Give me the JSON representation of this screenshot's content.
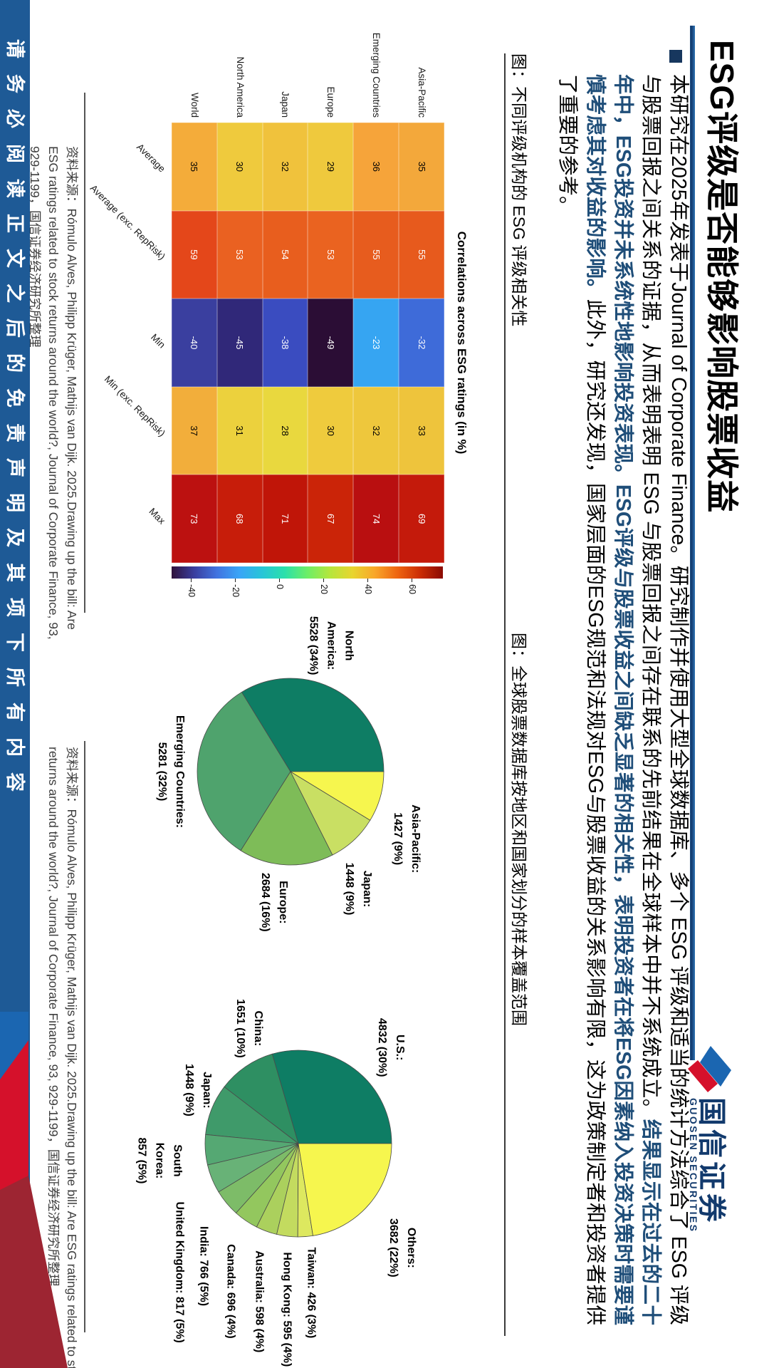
{
  "header": {
    "title": "ESG评级是否能够影响股票收益",
    "logo_cn": "国信证券",
    "logo_en": "GUOSEN SECURITIES",
    "accent_navy": "#1f4e79",
    "underline_color": "#1c4e85"
  },
  "paragraph": {
    "runs": [
      {
        "style": "normal",
        "text": "本研究在2025年发表于Journal of Corporate Finance。研究制作并使用大型全球数据库、多个 ESG 评级和适当的统计方法综合了 ESG 评级与股票回报之间关系的证据，从而表明表明 ESG 与股票回报之间存在联系的先前结果在全球样本中并不系统成立。"
      },
      {
        "style": "em",
        "text": "结果显示在过去的二十年中，ESG投资并未系统性地影响投资表现。ESG评级与股票收益之间缺乏显著的相关性，表明投资者在将ESG因素纳入投资决策时需要谨慎考虑其对收益的影响。"
      },
      {
        "style": "normal",
        "text": "此外，研究还发现，国家层面的ESG规范和法规对ESG与股票收益的关系影响有限，这为政策制定者和投资者提供了重要的参考。"
      }
    ]
  },
  "figure1": {
    "caption": "图：不同评级机构的 ESG 评级相关性",
    "source_lines": [
      "资料来源：Rómulo Alves, Philipp Krüger, Mathijs van Dijk. 2025.Drawing up the bill: Are",
      "ESG ratings related to stock returns around the world?, Journal of Corporate Finance, 93,",
      "929-1199，国信证券经济研究所整理"
    ]
  },
  "figure2": {
    "caption": "图：全球股票数据库按地区和国家划分的样本覆盖范围",
    "source_lines": [
      "资料来源：Rómulo Alves, Philipp Krüger, Mathijs van Dijk. 2025.Drawing up the bill: Are ESG ratings related to stock",
      "returns around the world?, Journal of Corporate Finance, 93, 929-1199，国信证券经济研究所整理"
    ]
  },
  "footer": {
    "disclaimer": "请务必阅读正文之后的免责声明及其项下所有内容"
  },
  "chart_data": [
    {
      "type": "heatmap",
      "title": "Correlations across ESG ratings (in %)",
      "rows": [
        "Asia-Pacific",
        "Emerging Countries",
        "Europe",
        "Japan",
        "North America",
        "World"
      ],
      "cols": [
        "Average",
        "Average (exc. RepRisk)",
        "Min",
        "Min (exc. RepRisk)",
        "Max"
      ],
      "values": [
        [
          35,
          55,
          -32,
          33,
          69
        ],
        [
          36,
          55,
          -23,
          32,
          74
        ],
        [
          29,
          53,
          -49,
          30,
          67
        ],
        [
          32,
          54,
          -38,
          28,
          71
        ],
        [
          30,
          53,
          -45,
          31,
          68
        ],
        [
          35,
          59,
          -40,
          37,
          73
        ]
      ],
      "cell_colors": [
        [
          "#F3A83B",
          "#E75A1D",
          "#3E6BD9",
          "#EEC43C",
          "#C41A0B"
        ],
        [
          "#F6A43A",
          "#E75C1E",
          "#36A5F2",
          "#EEC73C",
          "#B90F10"
        ],
        [
          "#EFC93D",
          "#EA6320",
          "#2B0D35",
          "#EFCB3D",
          "#CB2408"
        ],
        [
          "#F0C23C",
          "#E85E1E",
          "#3A4CC0",
          "#E9D83E",
          "#C01508"
        ],
        [
          "#EFCA3D",
          "#EA6121",
          "#302879",
          "#ECD13D",
          "#C71D0A"
        ],
        [
          "#F4AC3A",
          "#E4471A",
          "#3A3F9F",
          "#F2AE3B",
          "#BC1110"
        ]
      ],
      "colorbar": {
        "vmin": -49,
        "vmax": 74,
        "ticks": [
          -40,
          -20,
          0,
          20,
          40,
          60
        ],
        "stops": [
          "#30123b",
          "#3a3e9f",
          "#4173e0",
          "#39a5f7",
          "#27c5d8",
          "#2ae0ab",
          "#6cee67",
          "#b5e63c",
          "#e8d52f",
          "#f9a629",
          "#ee6410",
          "#cb2c04",
          "#8a0a03"
        ]
      }
    },
    {
      "type": "pie",
      "name": "sample-by-region",
      "counterclock": true,
      "startangle": 90,
      "slices": [
        {
          "label_lines": [
            "North",
            "America:",
            "5528 (34%)"
          ],
          "value": 5528,
          "pct": "34%",
          "color": "#0E7D64",
          "ang": 162,
          "d": 1.42
        },
        {
          "label_lines": [
            "Emerging Countries:",
            "5281 (32%)"
          ],
          "value": 5281,
          "pct": "32%",
          "color": "#4FA36D",
          "ang": 270,
          "d": 1.28
        },
        {
          "label_lines": [
            "Europe:",
            "2684 (16%)"
          ],
          "value": 2684,
          "pct": "16%",
          "color": "#7EBC58",
          "ang": 353,
          "d": 1.41
        },
        {
          "label_lines": [
            "Japan:",
            "1448 (9%)"
          ],
          "value": 1448,
          "pct": "9%",
          "color": "#C9DF63",
          "ang": 30,
          "d": 1.45
        },
        {
          "label_lines": [
            "Asia-Pacific:",
            "1427 (9%)"
          ],
          "value": 1427,
          "pct": "9%",
          "color": "#F6F64E",
          "ang": 60,
          "d": 1.44
        }
      ]
    },
    {
      "type": "pie",
      "name": "sample-by-country",
      "counterclock": true,
      "startangle": 90,
      "slices": [
        {
          "label_lines": [
            "U.S.:",
            "4832 (30%)"
          ],
          "value": 4832,
          "pct": "30%",
          "color": "#0E7D64",
          "ang": 136,
          "d": 1.43
        },
        {
          "label_lines": [
            "China:",
            "1651 (10%)"
          ],
          "value": 1651,
          "pct": "10%",
          "color": "#2E8F62",
          "ang": 203,
          "d": 1.34
        },
        {
          "label_lines": [
            "Japan:",
            "1448 (9%)"
          ],
          "value": 1448,
          "pct": "9%",
          "color": "#3F9A6A",
          "ang": 242,
          "d": 1.22
        },
        {
          "label_lines": [
            "South",
            "Korea:",
            "857 (5%)"
          ],
          "value": 857,
          "pct": "5%",
          "color": "#55A873",
          "ang": 277,
          "d": 1.5
        },
        {
          "label_lines": [
            "United Kingdom: 817 (5%)"
          ],
          "value": 817,
          "pct": "5%",
          "color": "#68B277",
          "ang": 296,
          "d": 1.42,
          "align": "left"
        },
        {
          "label_lines": [
            "India: 766 (5%)"
          ],
          "value": 766,
          "pct": "5%",
          "color": "#7DBC68",
          "ang": 311,
          "d": 1.35,
          "align": "left"
        },
        {
          "label_lines": [
            "Canada: 696 (4%)"
          ],
          "value": 696,
          "pct": "4%",
          "color": "#93C75E",
          "ang": 326,
          "d": 1.3,
          "align": "left"
        },
        {
          "label_lines": [
            "Australia: 598 (4%)"
          ],
          "value": 598,
          "pct": "4%",
          "color": "#ABD05D",
          "ang": 340,
          "d": 1.22,
          "align": "left"
        },
        {
          "label_lines": [
            "Hong Kong: 595 (4%)"
          ],
          "value": 595,
          "pct": "4%",
          "color": "#C3DB5F",
          "ang": 354,
          "d": 1.17,
          "align": "left"
        },
        {
          "label_lines": [
            "Taiwan: 426 (3%)"
          ],
          "value": 426,
          "pct": "3%",
          "color": "#DDE85F",
          "ang": 7,
          "d": 1.12,
          "align": "left"
        },
        {
          "label_lines": [
            "Others:",
            "3682 (22%)"
          ],
          "value": 3682,
          "pct": "22%",
          "color": "#F6F64E",
          "ang": 45,
          "d": 1.58
        }
      ]
    }
  ]
}
